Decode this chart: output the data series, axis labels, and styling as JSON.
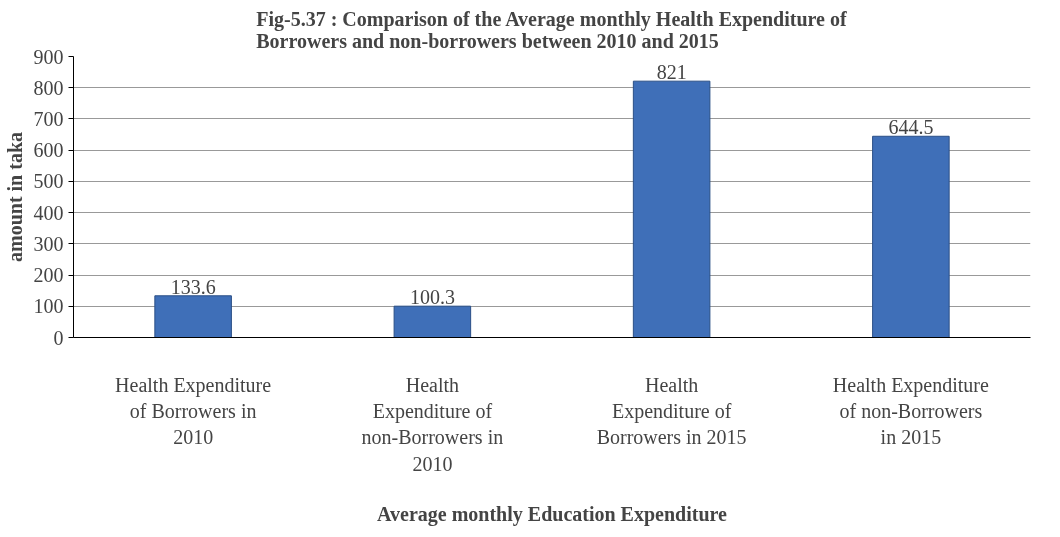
{
  "chart_data": {
    "type": "bar",
    "title": "Fig-5.37 : Comparison of the Average monthly Health Expenditure of Borrowers and non-borrowers between 2010 and 2015",
    "xlabel": "Average monthly Education Expenditure",
    "ylabel": "amount in taka",
    "categories": [
      "Health Expenditure of Borrowers in 2010",
      "Health  Expenditure of non-Borrowers in 2010",
      "Health  Expenditure of Borrowers in 2015",
      "Health Expenditure of non-Borrowers in 2015"
    ],
    "values": [
      133.6,
      100.3,
      821,
      644.5
    ],
    "color": "#3f6fb8",
    "ylim": [
      0,
      900
    ],
    "yticks": [
      0,
      100,
      200,
      300,
      400,
      500,
      600,
      700,
      800,
      900
    ],
    "grid": "y",
    "data_labels": true
  }
}
